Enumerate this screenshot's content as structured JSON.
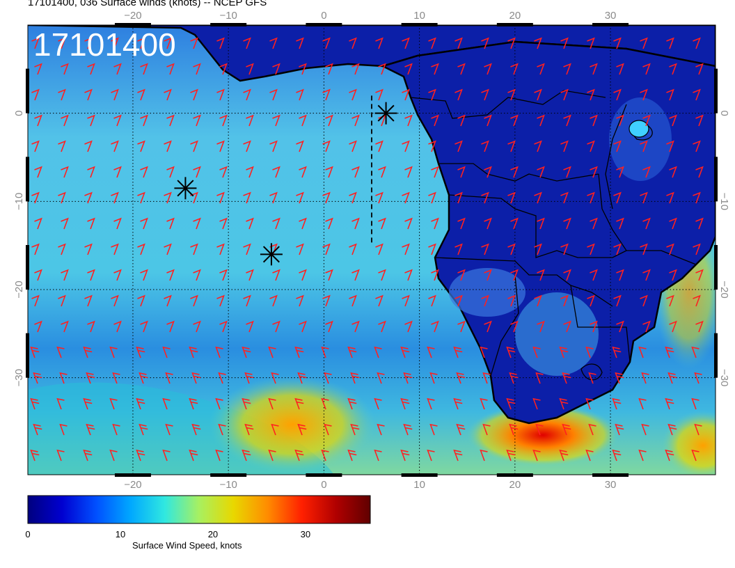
{
  "title": "17101400, 036 Surface winds (knots) -- NCEP GFS",
  "date_stamp": "17101400",
  "map": {
    "lon_ticks_top": [
      "−20",
      "−10",
      "0",
      "10",
      "20",
      "30"
    ],
    "lon_ticks_bottom": [
      "−20",
      "−10",
      "0",
      "10",
      "20",
      "30"
    ],
    "lat_ticks_left": [
      "0",
      "−10",
      "−20",
      "−30"
    ],
    "lat_ticks_right": [
      "0",
      "−10",
      "−20",
      "−30"
    ],
    "lon_range": [
      -31,
      41
    ],
    "lat_range": [
      10,
      -41
    ],
    "markers": [
      {
        "name": "marker-1",
        "lon": 6.5,
        "lat": 0
      },
      {
        "name": "marker-2",
        "lon": -14.5,
        "lat": -8.5
      },
      {
        "name": "marker-3",
        "lon": -5.5,
        "lat": -16
      }
    ],
    "track_line_lon": 5,
    "track_line_lat": [
      2,
      -15
    ],
    "barb_color": "#ff2020",
    "land_color": "#0b1a9e",
    "ocean_color": "#4fb6e8"
  },
  "colorbar": {
    "label": "Surface Wind Speed, knots",
    "ticks": [
      "0",
      "10",
      "20",
      "30"
    ],
    "tick_values": [
      0,
      10,
      20,
      30
    ],
    "max": 37,
    "colors": [
      "#00007f",
      "#0000d0",
      "#0050ff",
      "#00a8ff",
      "#30e8e0",
      "#a8f060",
      "#e8d800",
      "#ff8c00",
      "#ff2000",
      "#b00000",
      "#600000"
    ]
  }
}
